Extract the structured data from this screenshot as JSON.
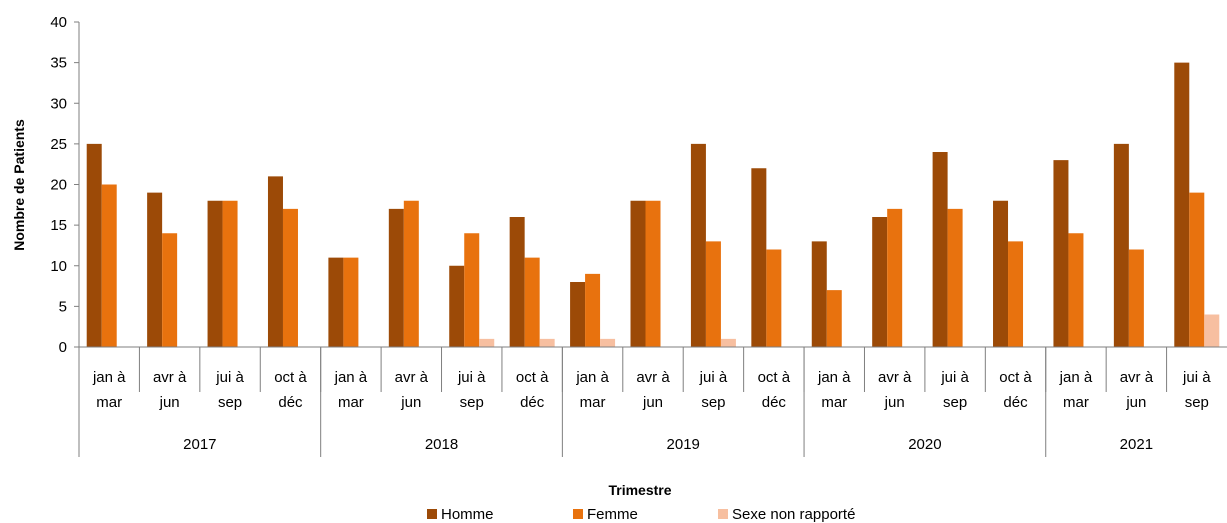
{
  "chart_data": {
    "type": "bar",
    "title": "",
    "xlabel": "Trimestre",
    "ylabel": "Nombre de Patients",
    "ylim": [
      0,
      40
    ],
    "yticks": [
      0,
      5,
      10,
      15,
      20,
      25,
      30,
      35,
      40
    ],
    "categories": [
      {
        "line1": "jan à",
        "line2": "mar"
      },
      {
        "line1": "avr à",
        "line2": "jun"
      },
      {
        "line1": "jui à",
        "line2": "sep"
      },
      {
        "line1": "oct à",
        "line2": "déc"
      },
      {
        "line1": "jan à",
        "line2": "mar"
      },
      {
        "line1": "avr à",
        "line2": "jun"
      },
      {
        "line1": "jui à",
        "line2": "sep"
      },
      {
        "line1": "oct à",
        "line2": "déc"
      },
      {
        "line1": "jan à",
        "line2": "mar"
      },
      {
        "line1": "avr à",
        "line2": "jun"
      },
      {
        "line1": "jui à",
        "line2": "sep"
      },
      {
        "line1": "oct à",
        "line2": "déc"
      },
      {
        "line1": "jan à",
        "line2": "mar"
      },
      {
        "line1": "avr à",
        "line2": "jun"
      },
      {
        "line1": "jui à",
        "line2": "sep"
      },
      {
        "line1": "oct à",
        "line2": "déc"
      },
      {
        "line1": "jan à",
        "line2": "mar"
      },
      {
        "line1": "avr à",
        "line2": "jun"
      },
      {
        "line1": "jui à",
        "line2": "sep"
      }
    ],
    "years": [
      {
        "label": "2017",
        "count": 4
      },
      {
        "label": "2018",
        "count": 4
      },
      {
        "label": "2019",
        "count": 4
      },
      {
        "label": "2020",
        "count": 4
      },
      {
        "label": "2021",
        "count": 3
      }
    ],
    "series": [
      {
        "name": "Homme",
        "color": "#9C4A07",
        "values": [
          25,
          19,
          18,
          21,
          11,
          17,
          10,
          16,
          8,
          18,
          25,
          22,
          13,
          16,
          24,
          18,
          23,
          25,
          35
        ]
      },
      {
        "name": "Femme",
        "color": "#E8720E",
        "values": [
          20,
          14,
          18,
          17,
          11,
          18,
          14,
          11,
          9,
          18,
          13,
          12,
          7,
          17,
          17,
          13,
          14,
          12,
          19
        ]
      },
      {
        "name": "Sexe non rapporté",
        "color": "#F7BFA0",
        "values": [
          0,
          0,
          0,
          0,
          0,
          0,
          1,
          1,
          1,
          0,
          1,
          0,
          0,
          0,
          0,
          0,
          0,
          0,
          4
        ]
      }
    ],
    "grid": false,
    "legend_position": "bottom"
  }
}
